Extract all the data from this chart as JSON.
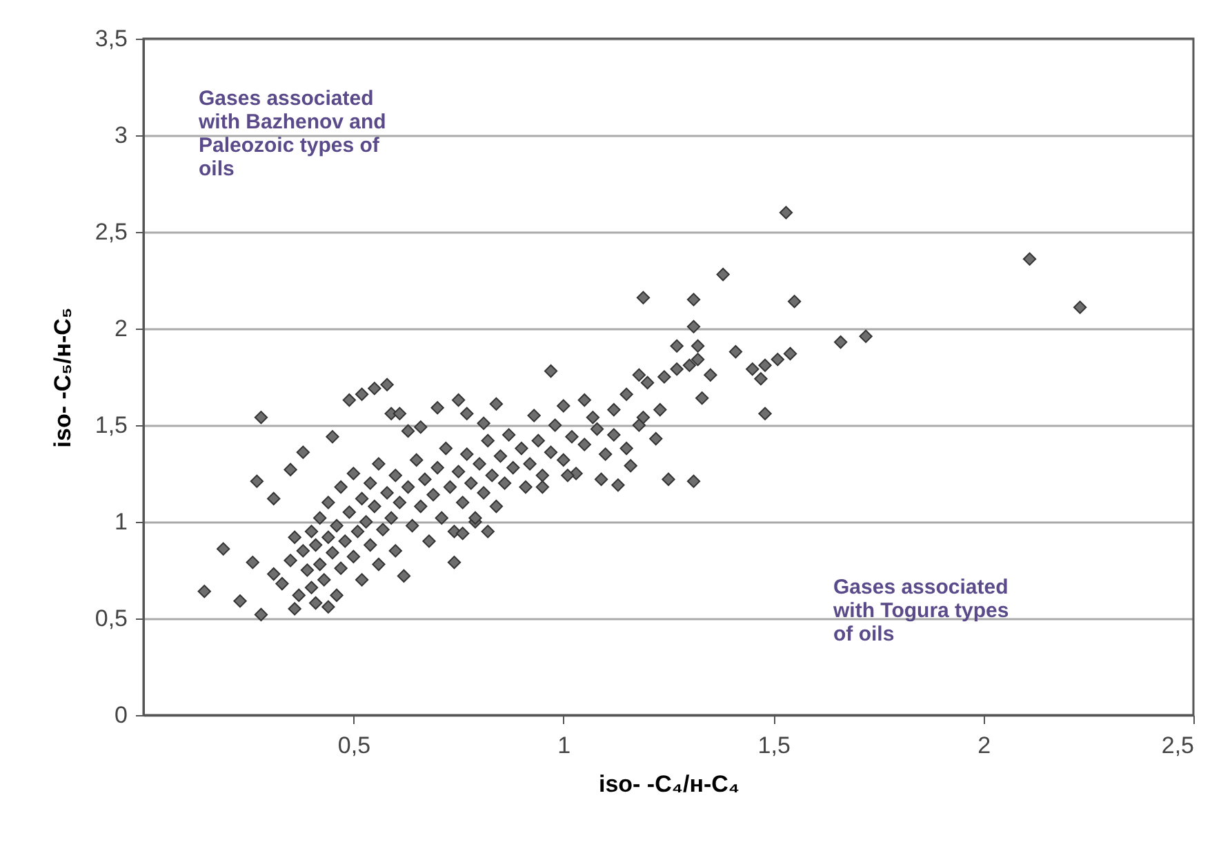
{
  "chart_data": {
    "type": "scatter",
    "xlabel": "iso- -C₄/н-C₄",
    "ylabel": "iso- -C₅/н-C₅",
    "xlim": [
      0,
      2.5
    ],
    "ylim": [
      0,
      3.5
    ],
    "xticks": [
      {
        "value": 0.5,
        "label": "0,5"
      },
      1,
      {
        "value": 1.5,
        "label": "1,5"
      },
      2,
      {
        "value": 2.5,
        "label": "2,5"
      }
    ],
    "yticks": [
      0,
      {
        "value": 0.5,
        "label": "0,5"
      },
      1,
      {
        "value": 1.5,
        "label": "1,5"
      },
      2,
      {
        "value": 2.5,
        "label": "2,5"
      },
      3,
      {
        "value": 3.5,
        "label": "3,5"
      }
    ],
    "grid": "y",
    "marker": "diamond",
    "annotations": [
      "Gases associated with Bazhenov and Paleozoic types of oils",
      "Gases associated with Togura types of oils"
    ],
    "series": [
      {
        "color": "#6e6e6e",
        "x": [
          0.145,
          0.19,
          0.23,
          0.28,
          0.27,
          0.26,
          0.28,
          0.31,
          0.35,
          0.38,
          0.31,
          0.36,
          0.41,
          0.45,
          0.49,
          0.52,
          0.55,
          0.58,
          0.59,
          0.61,
          0.63,
          0.66,
          0.7,
          0.75,
          0.77,
          0.81,
          0.84,
          0.33,
          0.35,
          0.36,
          0.37,
          0.38,
          0.39,
          0.4,
          0.4,
          0.41,
          0.42,
          0.42,
          0.43,
          0.44,
          0.44,
          0.45,
          0.46,
          0.46,
          0.47,
          0.47,
          0.48,
          0.49,
          0.5,
          0.5,
          0.51,
          0.52,
          0.52,
          0.53,
          0.54,
          0.54,
          0.55,
          0.56,
          0.56,
          0.57,
          0.58,
          0.59,
          0.6,
          0.6,
          0.61,
          0.62,
          0.63,
          0.64,
          0.65,
          0.66,
          0.67,
          0.68,
          0.69,
          0.7,
          0.71,
          0.72,
          0.73,
          0.74,
          0.75,
          0.76,
          0.77,
          0.78,
          0.79,
          0.8,
          0.81,
          0.82,
          0.83,
          0.84,
          0.85,
          0.86,
          0.87,
          0.88,
          0.9,
          0.91,
          0.92,
          0.94,
          0.95,
          0.97,
          0.98,
          1.0,
          1.02,
          1.03,
          0.74,
          0.76,
          0.82,
          0.79,
          0.44,
          1.38,
          1.31,
          1.55,
          1.19,
          1.31,
          1.27,
          1.32,
          1.41,
          1.66,
          1.72,
          0.97,
          1.18,
          1.2,
          1.24,
          1.27,
          1.3,
          1.32,
          1.35,
          1.45,
          1.48,
          1.51,
          1.54,
          1.47,
          1.33,
          1.48,
          1.15,
          1.05,
          1.23,
          1.19,
          1.07,
          1.12,
          1.16,
          1.25,
          1.31,
          1.09,
          1.13,
          1.01,
          0.95,
          1.53,
          2.11,
          2.23,
          1.05,
          1.08,
          1.1,
          1.12,
          0.93,
          1.0,
          1.18,
          1.22,
          1.15
        ],
        "values": [
          0.64,
          0.86,
          0.59,
          1.54,
          1.21,
          0.79,
          0.52,
          1.12,
          1.27,
          1.36,
          0.73,
          0.55,
          0.58,
          1.44,
          1.63,
          1.66,
          1.69,
          1.71,
          1.56,
          1.56,
          1.47,
          1.49,
          1.59,
          1.63,
          1.56,
          1.51,
          1.61,
          0.68,
          0.8,
          0.92,
          0.62,
          0.85,
          0.75,
          0.95,
          0.66,
          0.88,
          1.02,
          0.78,
          0.7,
          0.92,
          1.1,
          0.84,
          0.98,
          0.62,
          1.18,
          0.76,
          0.9,
          1.05,
          0.82,
          1.25,
          0.95,
          1.12,
          0.7,
          1.0,
          1.2,
          0.88,
          1.08,
          0.78,
          1.3,
          0.96,
          1.15,
          1.02,
          1.24,
          0.85,
          1.1,
          0.72,
          1.18,
          0.98,
          1.32,
          1.08,
          1.22,
          0.9,
          1.14,
          1.28,
          1.02,
          1.38,
          1.18,
          0.95,
          1.26,
          1.1,
          1.35,
          1.2,
          1.0,
          1.3,
          1.15,
          1.42,
          1.24,
          1.08,
          1.34,
          1.2,
          1.45,
          1.28,
          1.38,
          1.18,
          1.3,
          1.42,
          1.24,
          1.36,
          1.5,
          1.32,
          1.44,
          1.25,
          0.79,
          0.94,
          0.95,
          1.02,
          0.56,
          2.28,
          2.15,
          2.14,
          2.16,
          2.01,
          1.91,
          1.91,
          1.88,
          1.93,
          1.96,
          1.78,
          1.76,
          1.72,
          1.75,
          1.79,
          1.81,
          1.84,
          1.76,
          1.79,
          1.81,
          1.84,
          1.87,
          1.74,
          1.64,
          1.56,
          1.66,
          1.63,
          1.58,
          1.54,
          1.54,
          1.58,
          1.29,
          1.22,
          1.21,
          1.22,
          1.19,
          1.24,
          1.18,
          2.6,
          2.36,
          2.11,
          1.4,
          1.48,
          1.35,
          1.45,
          1.55,
          1.6,
          1.5,
          1.43,
          1.38
        ]
      }
    ]
  }
}
